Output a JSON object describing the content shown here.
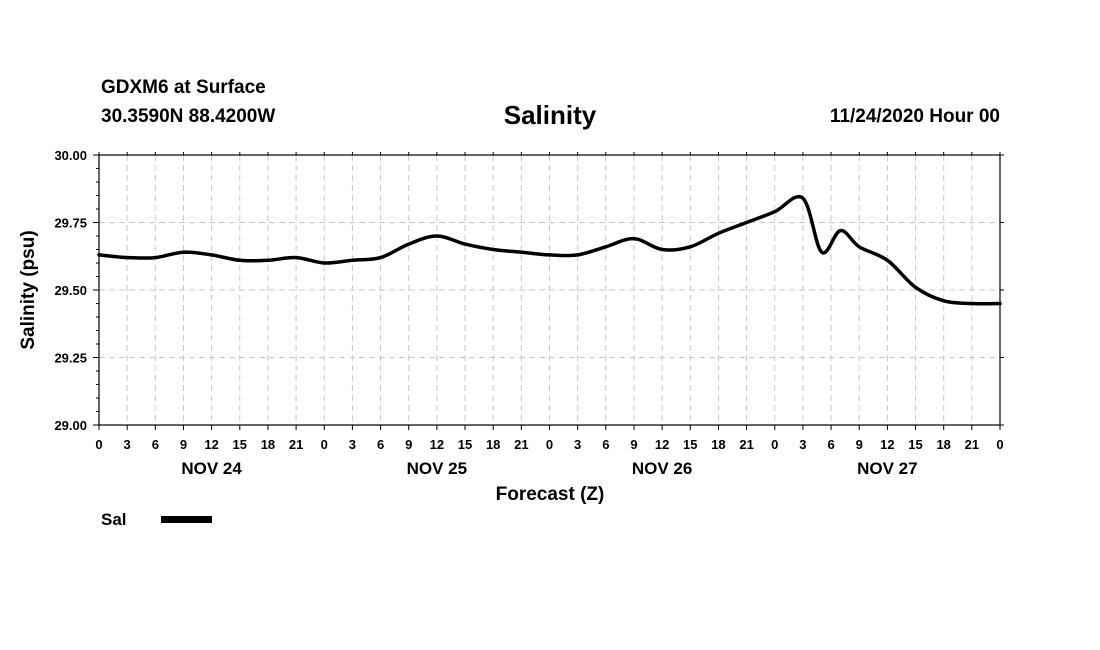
{
  "header": {
    "station": "GDXM6 at Surface",
    "coords": "30.3590N 88.4200W",
    "title": "Salinity",
    "timestamp": "11/24/2020 Hour 00"
  },
  "chart_data": {
    "type": "line",
    "title": "Salinity",
    "xlabel": "Forecast (Z)",
    "ylabel": "Salinity (psu)",
    "ylim": [
      29.0,
      30.0
    ],
    "yticks": [
      "29.00",
      "29.25",
      "29.50",
      "29.75",
      "30.00"
    ],
    "xlim_hours": [
      0,
      96
    ],
    "xtick_labels": [
      "0",
      "3",
      "6",
      "9",
      "12",
      "15",
      "18",
      "21",
      "0",
      "3",
      "6",
      "9",
      "12",
      "15",
      "18",
      "21",
      "0",
      "3",
      "6",
      "9",
      "12",
      "15",
      "18",
      "21",
      "0",
      "3",
      "6",
      "9",
      "12",
      "15",
      "18",
      "21",
      "0"
    ],
    "day_labels": [
      "NOV 24",
      "NOV 25",
      "NOV 26",
      "NOV 27"
    ],
    "grid": true,
    "legend_position": "bottom-left",
    "series": [
      {
        "name": "Sal",
        "color": "#000000",
        "x": [
          0,
          3,
          6,
          9,
          12,
          15,
          18,
          21,
          24,
          27,
          30,
          33,
          36,
          39,
          42,
          45,
          48,
          51,
          54,
          57,
          60,
          63,
          66,
          69,
          72,
          75,
          77,
          79,
          81,
          84,
          87,
          90,
          93,
          96
        ],
        "y": [
          29.63,
          29.62,
          29.62,
          29.64,
          29.63,
          29.61,
          29.61,
          29.62,
          29.6,
          29.61,
          29.62,
          29.67,
          29.7,
          29.67,
          29.65,
          29.64,
          29.63,
          29.63,
          29.66,
          29.69,
          29.65,
          29.66,
          29.71,
          29.75,
          29.79,
          29.84,
          29.64,
          29.72,
          29.66,
          29.61,
          29.51,
          29.46,
          29.45,
          29.45
        ]
      }
    ]
  }
}
